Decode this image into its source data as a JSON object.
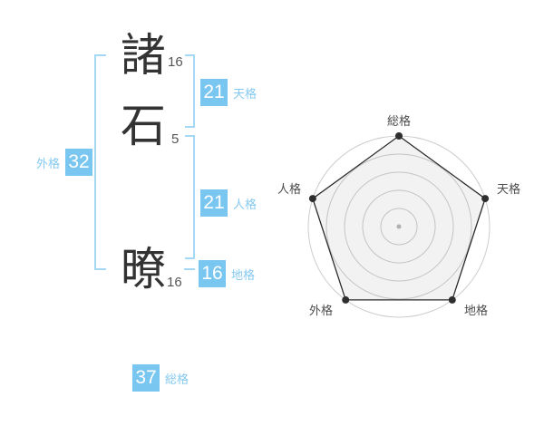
{
  "name": {
    "characters": [
      {
        "char": "諸",
        "strokes": "16"
      },
      {
        "char": "石",
        "strokes": "5"
      },
      {
        "char": "暸",
        "strokes": "16"
      }
    ],
    "scores": [
      {
        "id": "tenkaku",
        "label": "天格",
        "value": "21"
      },
      {
        "id": "jinkaku",
        "label": "人格",
        "value": "21"
      },
      {
        "id": "chikaku",
        "label": "地格",
        "value": "16"
      },
      {
        "id": "gaikaku",
        "label": "外格",
        "value": "32"
      },
      {
        "id": "soukaku",
        "label": "総格",
        "value": "37"
      }
    ]
  },
  "chart_data": {
    "type": "radar",
    "title": "",
    "categories": [
      "総格",
      "天格",
      "地格",
      "外格",
      "人格"
    ],
    "values": [
      5,
      5,
      5,
      5,
      5
    ],
    "max": 5,
    "rings": 5,
    "start_angle_deg": 90,
    "direction": "clockwise",
    "grid": "circular",
    "legend": false
  },
  "colors": {
    "accent_badge": "#79c6f0",
    "accent_line": "#a5d8f5",
    "accent_label": "#85c9f1",
    "kanji": "#333333",
    "stroke_count": "#555555",
    "radar_ring": "#cdcdcd",
    "radar_center_dot": "#b8b8b8",
    "radar_polygon_stroke": "#2a2a2a",
    "radar_polygon_fill": "#555555",
    "radar_polygon_fill_opacity": "0.08",
    "radar_vertex_dot": "#2e2e2e",
    "radar_label": "#4d4d4d",
    "background": "#ffffff"
  }
}
